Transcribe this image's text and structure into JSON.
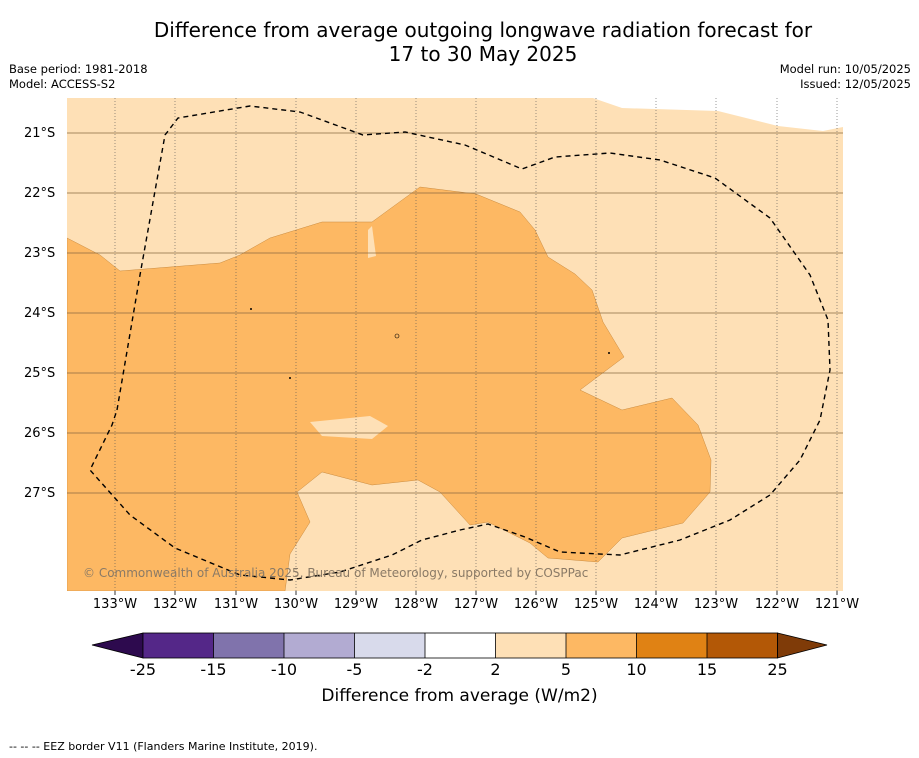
{
  "title_line1": "Difference from average outgoing longwave radiation forecast for",
  "title_line2": "17 to 30 May 2025",
  "base_period": "Base period: 1981-2018",
  "model": "Model: ACCESS-S2",
  "model_run": "Model run: 10/05/2025",
  "issued": "Issued: 12/05/2025",
  "copyright": "© Commonwealth of Australia 2025, Bureau of Meteorology, supported by COSPPac",
  "footnote": "--  --  -- EEZ border V11 (Flanders Marine Institute, 2019).",
  "lat_labels": [
    "21°S",
    "22°S",
    "23°S",
    "24°S",
    "25°S",
    "26°S",
    "27°S"
  ],
  "lon_labels": [
    "133°W",
    "132°W",
    "131°W",
    "130°W",
    "129°W",
    "128°W",
    "127°W",
    "126°W",
    "125°W",
    "124°W",
    "123°W",
    "122°W",
    "121°W"
  ],
  "colorbar": {
    "title": "Difference from average (W/m2)",
    "ticks": [
      "-25",
      "-15",
      "-10",
      "-5",
      "-2",
      "2",
      "5",
      "10",
      "15",
      "25"
    ],
    "colors": [
      "#2d0a4e",
      "#542788",
      "#8073ac",
      "#b2abd2",
      "#d8daeb",
      "#ffffff",
      "#fee0b6",
      "#fdb863",
      "#e08214",
      "#b35806",
      "#7f3b08"
    ]
  },
  "map_colors": {
    "class_2_5": "#fee0b6",
    "class_5_10": "#fdb863",
    "eez_line": "#000000"
  }
}
